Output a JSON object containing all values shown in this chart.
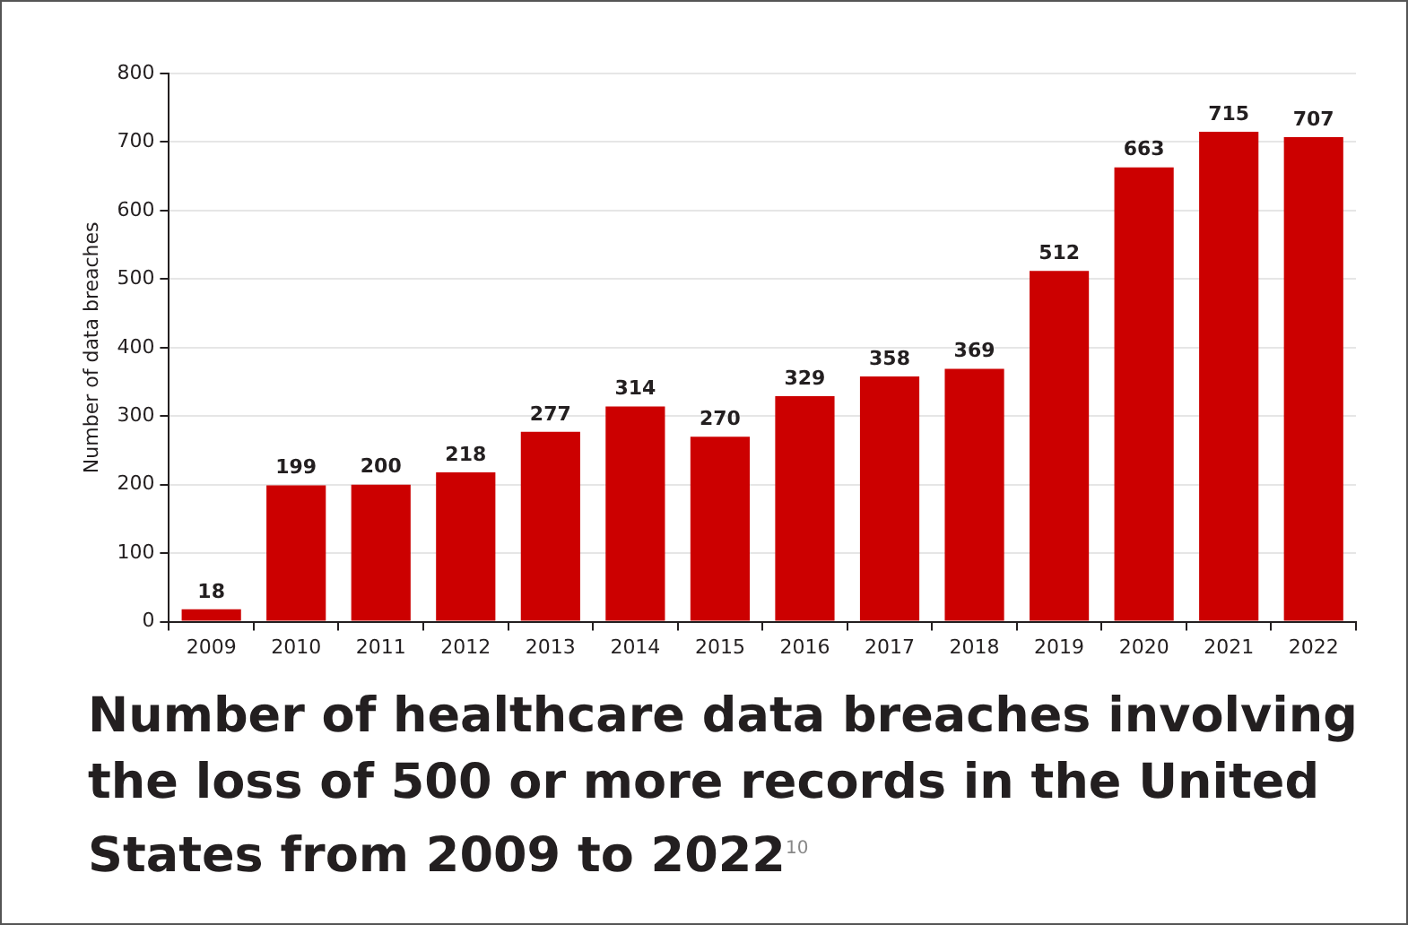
{
  "chart_data": {
    "type": "bar",
    "title": "Number of healthcare data breaches involving the loss of 500 or more records in the United States from 2009 to 2022$^{10}$",
    "ylabel": "Number of data breaches",
    "categories": [
      "2009",
      "2010",
      "2011",
      "2012",
      "2013",
      "2014",
      "2015",
      "2016",
      "2017",
      "2018",
      "2019",
      "2020",
      "2021",
      "2022"
    ],
    "values": [
      18,
      199,
      200,
      218,
      277,
      314,
      270,
      329,
      358,
      369,
      512,
      663,
      715,
      707
    ],
    "color": "#cc0000",
    "ylim": [
      0,
      800
    ],
    "yticks": [
      0,
      100,
      200,
      300,
      400,
      500,
      600,
      700,
      800
    ],
    "grid": "y",
    "data_labels": true,
    "legend": false
  }
}
